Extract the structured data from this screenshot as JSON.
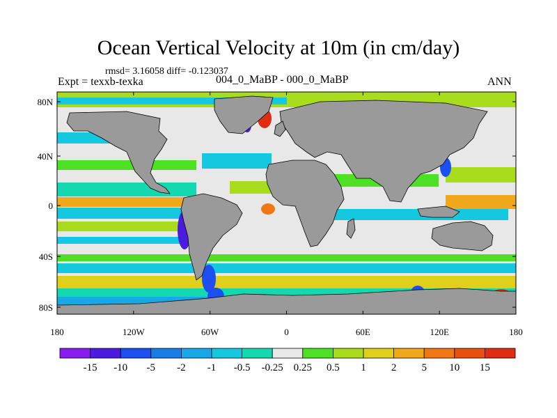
{
  "title": "Ocean Vertical Velocity at 10m (in cm/day)",
  "stats_line": "rmsd= 3.16058 diff= -0.123037",
  "left_label": "Expt = texxb-texka",
  "center_label": "004_0_MaBP - 000_0_MaBP",
  "right_label": "ANN",
  "lat_ticks": [
    "80N",
    "40N",
    "0",
    "40S",
    "80S"
  ],
  "lon_ticks": [
    "180",
    "120W",
    "60W",
    "0",
    "60E",
    "120E",
    "180"
  ],
  "colorbar": {
    "labels": [
      "-15",
      "-10",
      "-5",
      "-2",
      "-1",
      "-0.5",
      "-0.25",
      "0.25",
      "0.5",
      "1",
      "2",
      "5",
      "10",
      "15"
    ],
    "colors": [
      "#8a1cf0",
      "#4b1ce0",
      "#1c4ff0",
      "#1a7de6",
      "#18a8e8",
      "#14c8e0",
      "#14d8b0",
      "#e8e8e8",
      "#4ee024",
      "#a8dc1c",
      "#e0d01c",
      "#f0a81c",
      "#f07814",
      "#e85010",
      "#e02c10"
    ]
  },
  "colors": {
    "land": "#9a9a9a",
    "neutral": "#e8e8e8"
  }
}
